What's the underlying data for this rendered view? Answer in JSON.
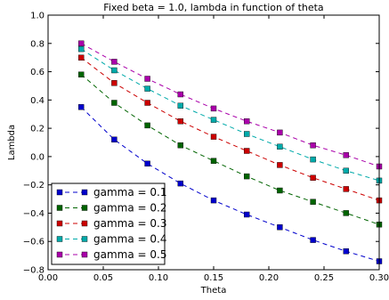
{
  "chart_data": {
    "type": "line",
    "title": "Fixed beta = 1.0, lambda in function of theta",
    "xlabel": "Theta",
    "ylabel": "Lambda",
    "xlim": [
      0.0,
      0.3
    ],
    "ylim": [
      -0.8,
      1.0
    ],
    "xticks": [
      "0.00",
      "0.05",
      "0.10",
      "0.15",
      "0.20",
      "0.25",
      "0.30"
    ],
    "yticks": [
      "−0.8",
      "−0.6",
      "−0.4",
      "−0.2",
      "0.0",
      "0.2",
      "0.4",
      "0.6",
      "0.8",
      "1.0"
    ],
    "grid": false,
    "legend_position": "lower-left",
    "line_style": "dashed",
    "marker": "square",
    "x": [
      0.03,
      0.06,
      0.09,
      0.12,
      0.15,
      0.18,
      0.21,
      0.24,
      0.27,
      0.3
    ],
    "series": [
      {
        "name": "gamma = 0.1",
        "color": "#0000cc",
        "values": [
          0.35,
          0.12,
          -0.05,
          -0.19,
          -0.31,
          -0.41,
          -0.5,
          -0.59,
          -0.67,
          -0.74
        ]
      },
      {
        "name": "gamma = 0.2",
        "color": "#006400",
        "values": [
          0.58,
          0.38,
          0.22,
          0.08,
          -0.03,
          -0.14,
          -0.24,
          -0.32,
          -0.4,
          -0.48
        ]
      },
      {
        "name": "gamma = 0.3",
        "color": "#cc0000",
        "values": [
          0.7,
          0.52,
          0.38,
          0.25,
          0.14,
          0.04,
          -0.06,
          -0.15,
          -0.23,
          -0.31
        ]
      },
      {
        "name": "gamma = 0.4",
        "color": "#00aaaa",
        "values": [
          0.76,
          0.61,
          0.48,
          0.36,
          0.26,
          0.16,
          0.07,
          -0.02,
          -0.1,
          -0.17
        ]
      },
      {
        "name": "gamma = 0.5",
        "color": "#aa00aa",
        "values": [
          0.8,
          0.67,
          0.55,
          0.44,
          0.34,
          0.25,
          0.17,
          0.08,
          0.01,
          -0.07
        ]
      }
    ]
  }
}
